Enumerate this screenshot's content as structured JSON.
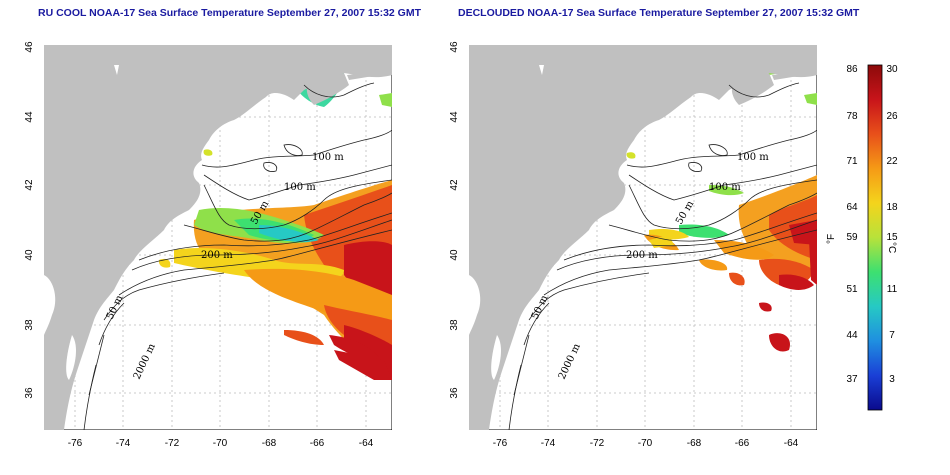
{
  "titles": {
    "left": "RU COOL NOAA-17 Sea Surface Temperature September 27, 2007 15:32 GMT",
    "right": "DECLOUDED NOAA-17 Sea Surface Temperature September 27, 2007 15:32 GMT"
  },
  "axes": {
    "lon_ticks": [
      "-76",
      "-74",
      "-72",
      "-70",
      "-68",
      "-66",
      "-64"
    ],
    "lat_ticks": [
      "36",
      "38",
      "40",
      "42",
      "44",
      "46"
    ]
  },
  "contour_labels": [
    "100 m",
    "100 m",
    "50 m",
    "200 m",
    "50 m",
    "2000 m"
  ],
  "colorbar": {
    "fahrenheit_ticks": [
      "86",
      "78",
      "71",
      "64",
      "59",
      "51",
      "44",
      "37"
    ],
    "celsius_ticks": [
      "30",
      "26",
      "22",
      "18",
      "15",
      "11",
      "7",
      "3"
    ],
    "f_unit": "°F",
    "c_unit": "°C",
    "colors": [
      "#0a0a8c",
      "#1a3fd6",
      "#1f8fe0",
      "#26c9c4",
      "#3de070",
      "#b8e23a",
      "#f4d41c",
      "#f59a16",
      "#e8501a",
      "#c8141a",
      "#8c0a0a"
    ]
  },
  "colors": {
    "land": "#c0c0c0",
    "title": "#1a1aa0"
  }
}
